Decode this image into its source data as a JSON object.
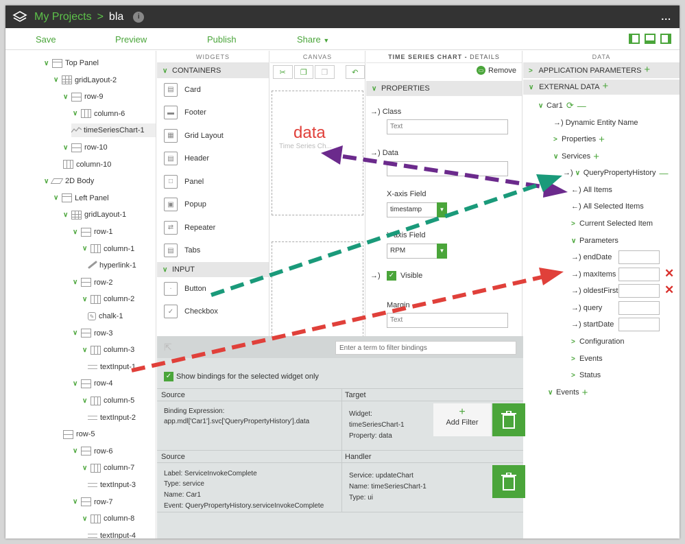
{
  "titlebar": {
    "project_link": "My Projects",
    "separator": ">",
    "current": "bla",
    "more": "..."
  },
  "toolbar": {
    "save": "Save",
    "preview": "Preview",
    "publish": "Publish",
    "share": "Share"
  },
  "tree": [
    {
      "label": "Top Panel",
      "icon": "panel",
      "level": 0
    },
    {
      "label": "gridLayout-2",
      "icon": "grid",
      "level": 1
    },
    {
      "label": "row-9",
      "icon": "row",
      "level": 2
    },
    {
      "label": "column-6",
      "icon": "column",
      "level": 3
    },
    {
      "label": "timeSeriesChart-1",
      "icon": "chart",
      "level": 4
    },
    {
      "label": "row-10",
      "icon": "row",
      "level": 2
    },
    {
      "label": "column-10",
      "icon": "column",
      "level": 3
    },
    {
      "label": "2D Body",
      "icon": "body",
      "level": 0
    },
    {
      "label": "Left Panel",
      "icon": "panel",
      "level": 1
    },
    {
      "label": "gridLayout-1",
      "icon": "grid",
      "level": 2
    },
    {
      "label": "row-1",
      "icon": "row",
      "level": 3
    },
    {
      "label": "column-1",
      "icon": "column",
      "level": 4
    },
    {
      "label": "hyperlink-1",
      "icon": "link",
      "level": 5
    },
    {
      "label": "row-2",
      "icon": "row",
      "level": 3
    },
    {
      "label": "column-2",
      "icon": "column",
      "level": 4
    },
    {
      "label": "chalk-1",
      "icon": "chalk",
      "level": 5
    },
    {
      "label": "row-3",
      "icon": "row",
      "level": 3
    },
    {
      "label": "column-3",
      "icon": "column",
      "level": 4
    },
    {
      "label": "textInput-1",
      "icon": "textinput",
      "level": 5
    },
    {
      "label": "row-4",
      "icon": "row",
      "level": 3
    },
    {
      "label": "column-5",
      "icon": "column",
      "level": 4
    },
    {
      "label": "textInput-2",
      "icon": "textinput",
      "level": 5
    },
    {
      "label": "row-5",
      "icon": "row",
      "level": 3
    },
    {
      "label": "row-6",
      "icon": "row",
      "level": 3
    },
    {
      "label": "column-7",
      "icon": "column",
      "level": 4
    },
    {
      "label": "textInput-3",
      "icon": "textinput",
      "level": 5
    },
    {
      "label": "row-7",
      "icon": "row",
      "level": 3
    },
    {
      "label": "column-8",
      "icon": "column",
      "level": 4
    },
    {
      "label": "textInput-4",
      "icon": "textinput",
      "level": 5
    }
  ],
  "widgets": {
    "header": "WIDGETS",
    "containers_label": "CONTAINERS",
    "containers": [
      "Card",
      "Footer",
      "Grid Layout",
      "Header",
      "Panel",
      "Popup",
      "Repeater",
      "Tabs"
    ],
    "input_label": "INPUT",
    "inputs": [
      "Button",
      "Checkbox"
    ]
  },
  "canvas": {
    "header": "CANVAS",
    "widget_text": "Time Series Ch..."
  },
  "details": {
    "header": "TIME SERIES CHART",
    "header_suffix": "DETAILS",
    "remove": "Remove",
    "properties_label": "PROPERTIES",
    "class_label": "Class",
    "class_placeholder": "Text",
    "data_label": "Data",
    "xaxis_label": "X-axis Field",
    "xaxis_value": "timestamp",
    "yaxis_label": "Y-axis Field",
    "yaxis_value": "RPM",
    "visible_label": "Visible",
    "margin_label": "Margin",
    "margin_placeholder": "Text"
  },
  "data_panel": {
    "header": "DATA",
    "app_params": "APPLICATION PARAMETERS",
    "external": "EXTERNAL DATA",
    "car": "Car1",
    "dynamic_entity": "Dynamic Entity Name",
    "properties": "Properties",
    "services": "Services",
    "query": "QueryPropertyHistory",
    "all_items": "All Items",
    "all_selected": "All Selected Items",
    "current_selected": "Current Selected Item",
    "parameters": "Parameters",
    "params": [
      "endDate",
      "maxItems",
      "oldestFirst",
      "query",
      "startDate"
    ],
    "configuration": "Configuration",
    "events_sub": "Events",
    "status": "Status",
    "events": "Events"
  },
  "bindings": {
    "filter_placeholder": "Enter a term to filter bindings",
    "show_label": "Show bindings for the selected widget only",
    "b1": {
      "source_hdr": "Source",
      "target_hdr": "Target",
      "expr_label": "Binding Expression:",
      "expr_value": "app.mdl['Car1'].svc['QueryPropertyHistory'].data",
      "widget_label": "Widget:",
      "widget_value": "timeSeriesChart-1",
      "property_label": "Property:",
      "property_value": "data",
      "add_filter": "Add Filter"
    },
    "b2": {
      "source_hdr": "Source",
      "handler_hdr": "Handler",
      "label_k": "Label:",
      "label_v": "ServiceInvokeComplete",
      "type_k": "Type:",
      "type_v": "service",
      "name_k": "Name:",
      "name_v": "Car1",
      "event_k": "Event:",
      "event_v": "QueryPropertyHistory.serviceInvokeComplete",
      "service_k": "Service:",
      "service_v": "updateChart",
      "hname_k": "Name:",
      "hname_v": "timeSeriesChart-1",
      "htype_k": "Type:",
      "htype_v": "ui"
    }
  },
  "annotation": {
    "label": "data"
  },
  "colors": {
    "accent": "#4aa53a",
    "title_bg": "#333333",
    "arrow_purple": "#6b2a8c",
    "arrow_teal": "#1a9a7a",
    "arrow_red": "#e0403a"
  }
}
